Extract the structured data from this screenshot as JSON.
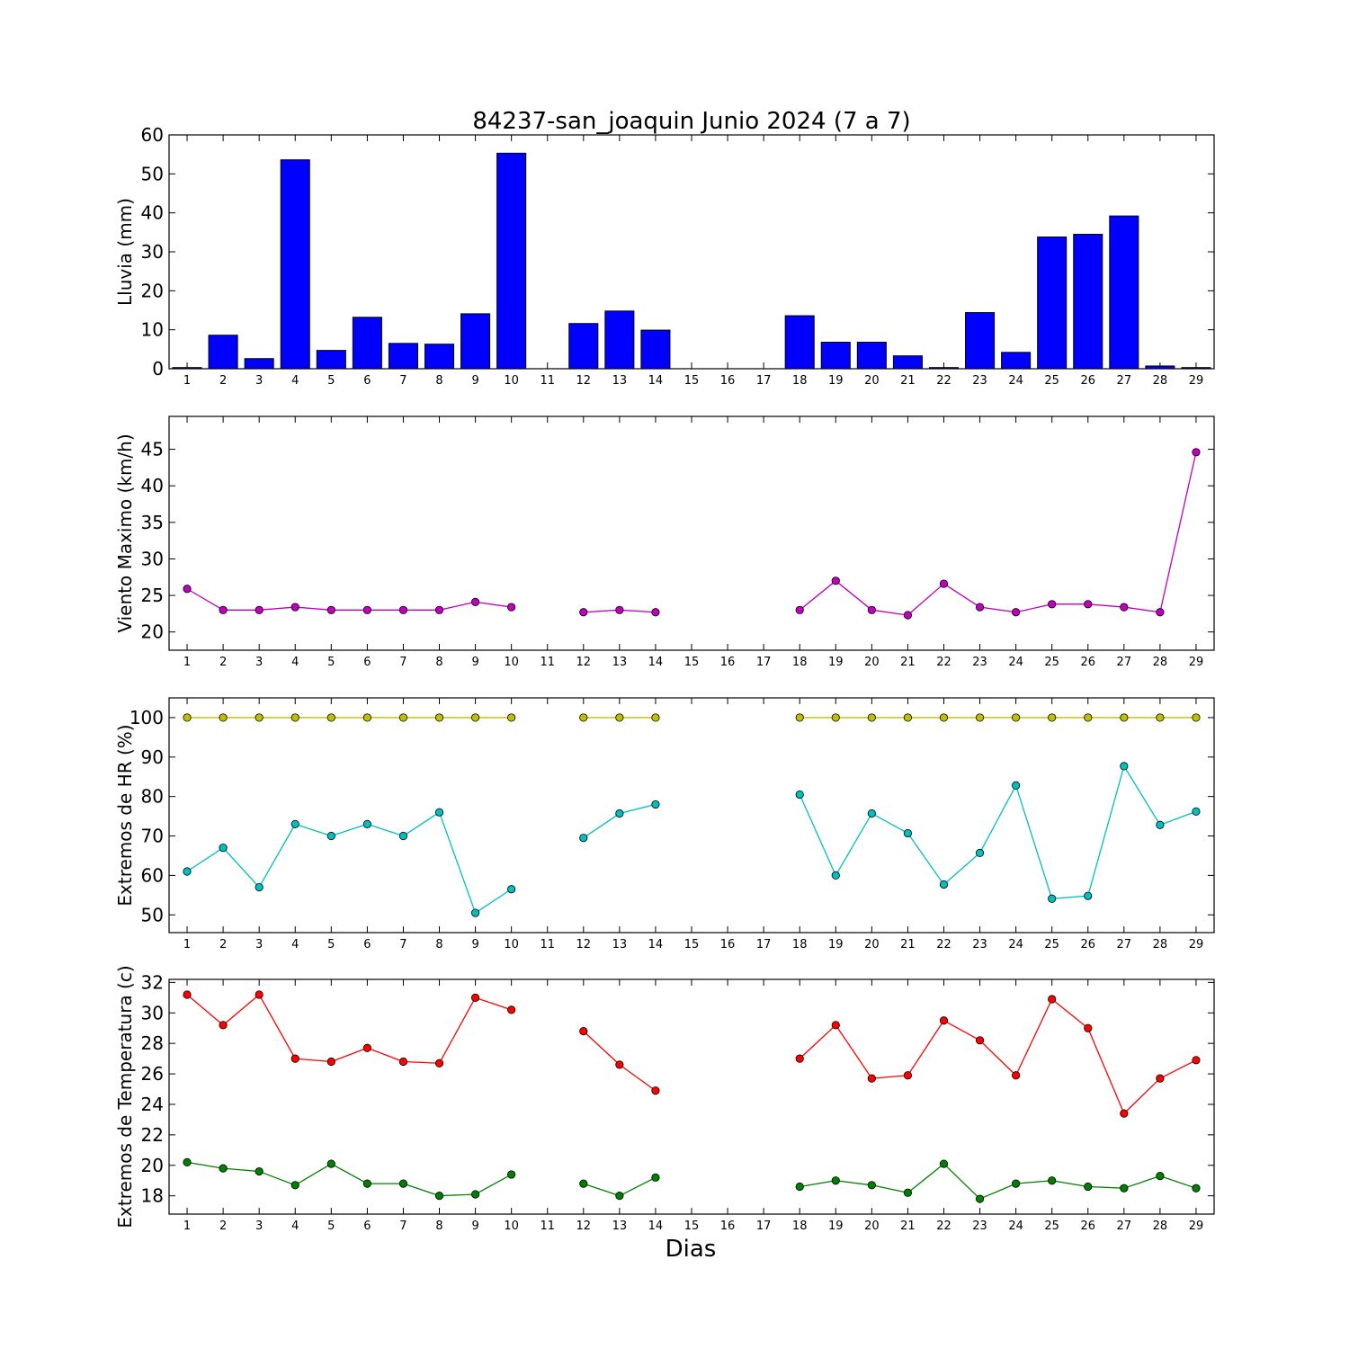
{
  "figure": {
    "title": "84237-san_joaquin Junio 2024  (7 a 7)",
    "xlabel": "Dias"
  },
  "chart_data": [
    {
      "type": "bar",
      "ylabel": "Lluvia (mm)",
      "ylim": [
        0,
        60
      ],
      "yticks": [
        0,
        10,
        20,
        30,
        40,
        50,
        60
      ],
      "color": "#0000ff",
      "x": [
        1,
        2,
        3,
        4,
        5,
        6,
        7,
        8,
        9,
        10,
        11,
        12,
        13,
        14,
        15,
        16,
        17,
        18,
        19,
        20,
        21,
        22,
        23,
        24,
        25,
        26,
        27,
        28,
        29
      ],
      "values": [
        0.3,
        8.6,
        2.6,
        53.6,
        4.7,
        13.2,
        6.5,
        6.3,
        14.1,
        55.3,
        0,
        11.6,
        14.8,
        9.9,
        0,
        0,
        0,
        13.6,
        6.8,
        6.8,
        3.3,
        0.3,
        14.4,
        4.2,
        33.8,
        34.5,
        39.2,
        0.7,
        0.3
      ]
    },
    {
      "type": "line",
      "ylabel": "Viento Maximo (km/h)",
      "ylim": [
        17.5,
        49.5
      ],
      "yticks": [
        20,
        25,
        30,
        35,
        40,
        45
      ],
      "series": [
        {
          "color": "#bf00bf",
          "x": [
            1,
            2,
            3,
            4,
            5,
            6,
            7,
            8,
            9,
            10,
            11,
            12,
            13,
            14,
            15,
            16,
            17,
            18,
            19,
            20,
            21,
            22,
            23,
            24,
            25,
            26,
            27,
            28,
            29
          ],
          "values": [
            25.9,
            23.0,
            23.0,
            23.4,
            23.0,
            23.0,
            23.0,
            23.0,
            24.1,
            23.4,
            null,
            22.7,
            23.0,
            22.7,
            null,
            null,
            null,
            23.0,
            27.0,
            23.0,
            22.3,
            26.6,
            23.4,
            22.7,
            23.8,
            23.8,
            23.4,
            22.7,
            44.6
          ]
        }
      ]
    },
    {
      "type": "line",
      "ylabel": "Extremos de HR (%)",
      "ylim": [
        45.5,
        105
      ],
      "yticks": [
        50,
        60,
        70,
        80,
        90,
        100
      ],
      "series": [
        {
          "color": "#bfbf00",
          "x": [
            1,
            2,
            3,
            4,
            5,
            6,
            7,
            8,
            9,
            10,
            11,
            12,
            13,
            14,
            15,
            16,
            17,
            18,
            19,
            20,
            21,
            22,
            23,
            24,
            25,
            26,
            27,
            28,
            29
          ],
          "values": [
            100,
            100,
            100,
            100,
            100,
            100,
            100,
            100,
            100,
            100,
            null,
            100,
            100,
            100,
            null,
            null,
            null,
            100,
            100,
            100,
            100,
            100,
            100,
            100,
            100,
            100,
            100,
            100,
            100
          ]
        },
        {
          "color": "#00bfbf",
          "x": [
            1,
            2,
            3,
            4,
            5,
            6,
            7,
            8,
            9,
            10,
            11,
            12,
            13,
            14,
            15,
            16,
            17,
            18,
            19,
            20,
            21,
            22,
            23,
            24,
            25,
            26,
            27,
            28,
            29
          ],
          "values": [
            61,
            67,
            57,
            73,
            70,
            73,
            70,
            76,
            50.5,
            56.5,
            null,
            69.5,
            75.7,
            78,
            null,
            null,
            null,
            80.5,
            60,
            75.7,
            70.7,
            57.7,
            65.7,
            82.8,
            54.1,
            54.8,
            87.7,
            72.8,
            76.2
          ]
        }
      ]
    },
    {
      "type": "line",
      "ylabel": "Extremos de Temperatura (c)",
      "ylim": [
        16.8,
        32.2
      ],
      "yticks": [
        18,
        20,
        22,
        24,
        26,
        28,
        30,
        32
      ],
      "series": [
        {
          "color": "#ff0000",
          "x": [
            1,
            2,
            3,
            4,
            5,
            6,
            7,
            8,
            9,
            10,
            11,
            12,
            13,
            14,
            15,
            16,
            17,
            18,
            19,
            20,
            21,
            22,
            23,
            24,
            25,
            26,
            27,
            28,
            29
          ],
          "values": [
            31.2,
            29.2,
            31.2,
            27.0,
            26.8,
            27.7,
            26.8,
            26.7,
            31.0,
            30.2,
            null,
            28.8,
            26.6,
            24.9,
            null,
            null,
            null,
            27.0,
            29.2,
            25.7,
            25.9,
            29.5,
            28.2,
            25.9,
            30.9,
            29.0,
            23.4,
            25.7,
            26.9
          ]
        },
        {
          "color": "#008000",
          "x": [
            1,
            2,
            3,
            4,
            5,
            6,
            7,
            8,
            9,
            10,
            11,
            12,
            13,
            14,
            15,
            16,
            17,
            18,
            19,
            20,
            21,
            22,
            23,
            24,
            25,
            26,
            27,
            28,
            29
          ],
          "values": [
            20.2,
            19.8,
            19.6,
            18.7,
            20.1,
            18.8,
            18.8,
            18.0,
            18.1,
            19.4,
            null,
            18.8,
            18.0,
            19.2,
            null,
            null,
            null,
            18.6,
            19.0,
            18.7,
            18.2,
            20.1,
            17.8,
            18.8,
            19.0,
            18.6,
            18.5,
            19.3,
            18.5
          ]
        }
      ]
    }
  ]
}
